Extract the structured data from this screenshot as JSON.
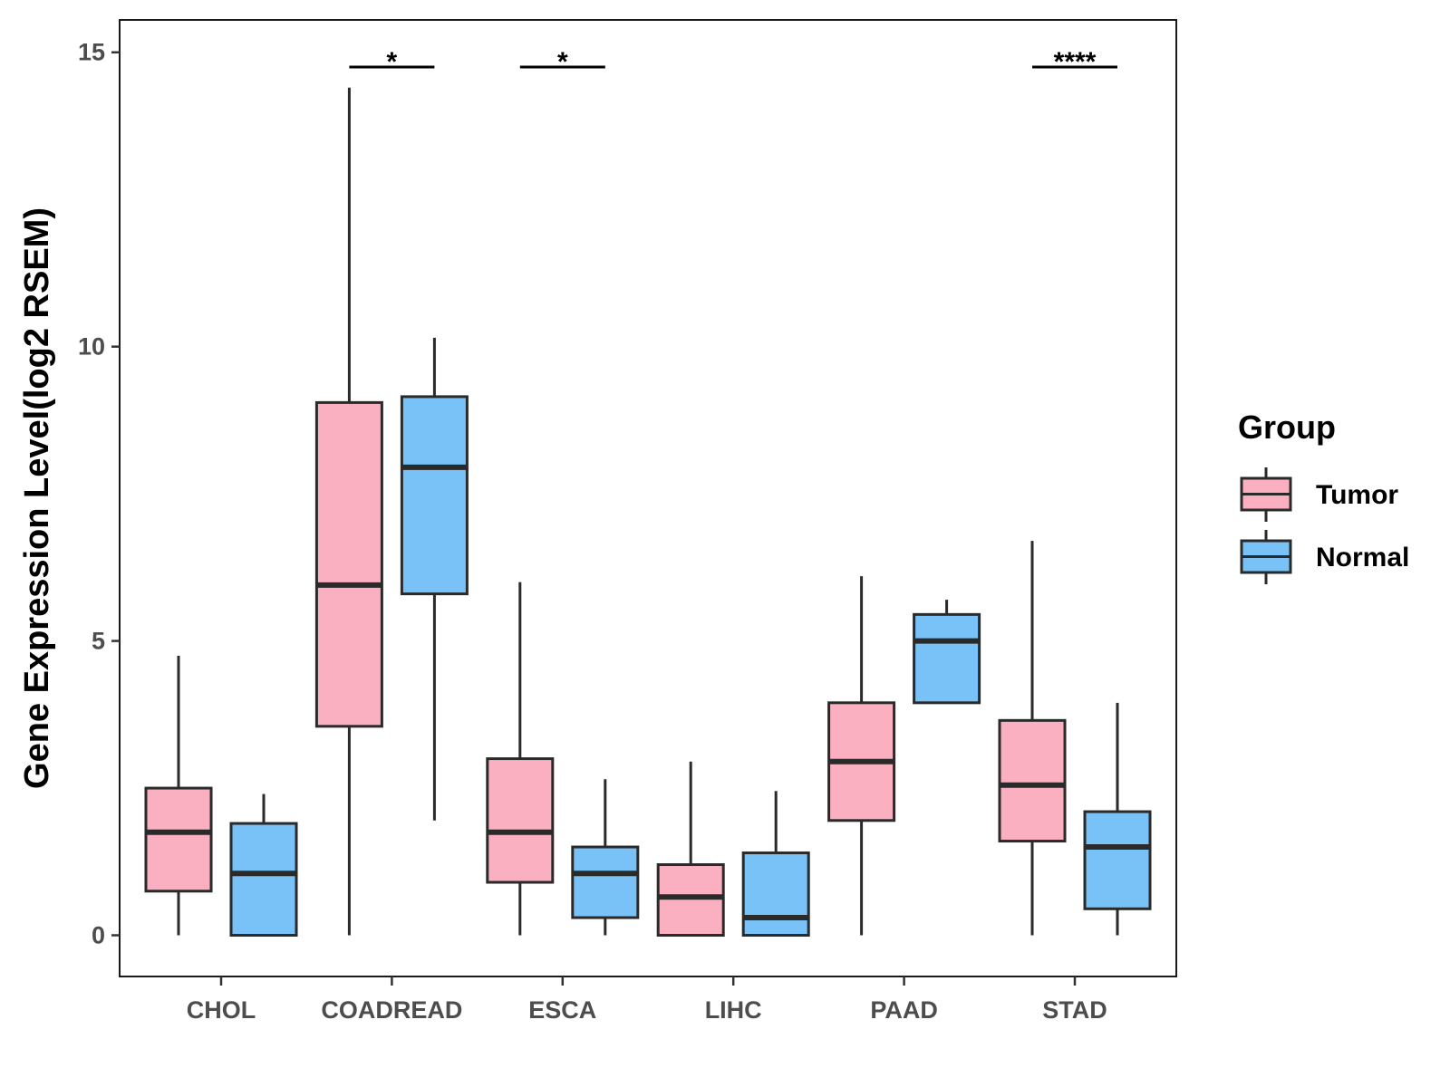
{
  "chart_data": {
    "type": "boxplot",
    "ylabel": "Gene Expression Level(log2 RSEM)",
    "xlabel": "",
    "ylim": [
      -0.7,
      15.55
    ],
    "yticks": [
      0,
      5,
      10,
      15
    ],
    "ytick_labels": [
      "0",
      "5",
      "10",
      "15"
    ],
    "categories": [
      "CHOL",
      "COADREAD",
      "ESCA",
      "LIHC",
      "PAAD",
      "STAD"
    ],
    "series": [
      {
        "name": "Tumor",
        "color": "#FBB0C2",
        "boxes": [
          {
            "min": 0.0,
            "q1": 0.75,
            "median": 1.75,
            "q3": 2.5,
            "max": 4.75
          },
          {
            "min": 0.0,
            "q1": 3.55,
            "median": 5.95,
            "q3": 9.05,
            "max": 14.4
          },
          {
            "min": 0.0,
            "q1": 0.9,
            "median": 1.75,
            "q3": 3.0,
            "max": 6.0
          },
          {
            "min": 0.0,
            "q1": 0.0,
            "median": 0.65,
            "q3": 1.2,
            "max": 2.95
          },
          {
            "min": 0.0,
            "q1": 1.95,
            "median": 2.95,
            "q3": 3.95,
            "max": 6.1
          },
          {
            "min": 0.0,
            "q1": 1.6,
            "median": 2.55,
            "q3": 3.65,
            "max": 6.7
          }
        ]
      },
      {
        "name": "Normal",
        "color": "#78C2F7",
        "boxes": [
          {
            "min": 0.0,
            "q1": 0.0,
            "median": 1.05,
            "q3": 1.9,
            "max": 2.4
          },
          {
            "min": 1.95,
            "q1": 5.8,
            "median": 7.95,
            "q3": 9.15,
            "max": 10.15
          },
          {
            "min": 0.0,
            "q1": 0.3,
            "median": 1.05,
            "q3": 1.5,
            "max": 2.65
          },
          {
            "min": 0.0,
            "q1": 0.0,
            "median": 0.3,
            "q3": 1.4,
            "max": 2.45
          },
          {
            "min": 3.95,
            "q1": 3.95,
            "median": 5.0,
            "q3": 5.45,
            "max": 5.7
          },
          {
            "min": 0.0,
            "q1": 0.45,
            "median": 1.5,
            "q3": 2.1,
            "max": 3.95
          }
        ]
      }
    ],
    "significance": [
      {
        "category": "COADREAD",
        "label": "*",
        "y": 14.75
      },
      {
        "category": "ESCA",
        "label": "*",
        "y": 14.75
      },
      {
        "category": "STAD",
        "label": "****",
        "y": 14.75
      }
    ],
    "legend": {
      "title": "Group",
      "position": "right",
      "entries": [
        "Tumor",
        "Normal"
      ]
    },
    "grid": false
  }
}
